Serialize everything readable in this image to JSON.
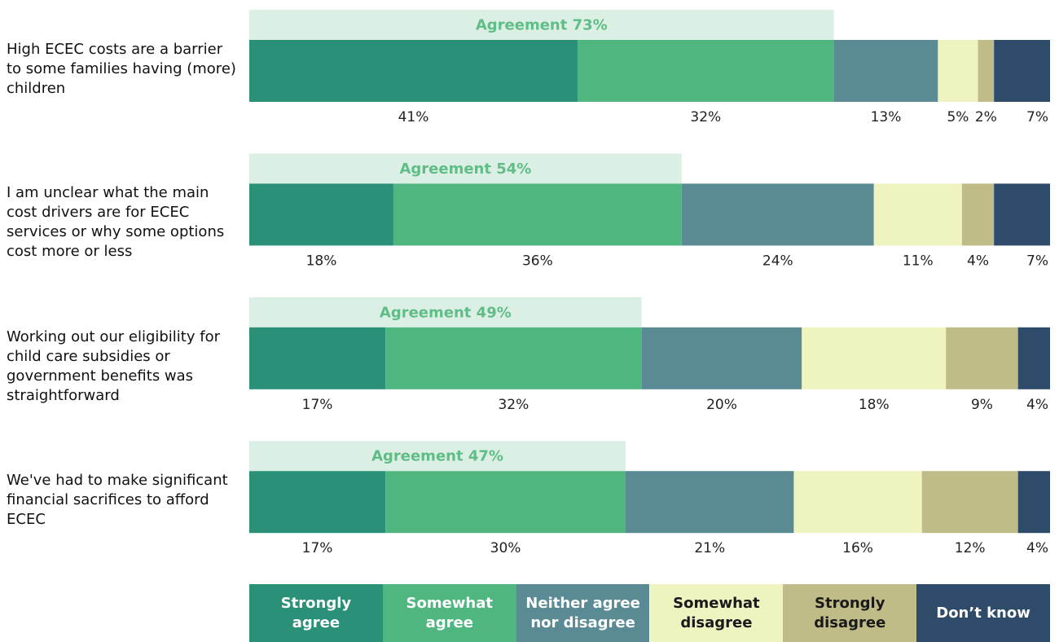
{
  "chart_data": {
    "type": "stacked_bar",
    "orientation": "horizontal",
    "categories": [
      "High ECEC costs are a barrier to some families having (more) children",
      "I am unclear what the main cost drivers are for ECEC services or why some options cost more or less",
      "Working out our eligibility for child care subsidies or government benefits was straightforward",
      "We've had to make significant financial sacrifices to afford ECEC"
    ],
    "xlim": [
      0,
      100
    ],
    "series": [
      {
        "name": "Strongly agree",
        "color": "#2a9078",
        "values": [
          41,
          18,
          17,
          17
        ],
        "value_labels": [
          "41%",
          "18%",
          "17%",
          "17%"
        ]
      },
      {
        "name": "Somewhat agree",
        "color": "#50b67f",
        "values": [
          32,
          36,
          32,
          30
        ],
        "value_labels": [
          "32%",
          "36%",
          "32%",
          "30%"
        ]
      },
      {
        "name": "Neither agree nor disagree",
        "color": "#5a8b95",
        "values": [
          13,
          24,
          20,
          21
        ],
        "value_labels": [
          "13%",
          "24%",
          "20%",
          "21%"
        ]
      },
      {
        "name": "Somewhat disagree",
        "color": "#eff3c0",
        "values": [
          5,
          11,
          18,
          16
        ],
        "value_labels": [
          "5%",
          "11%",
          "18%",
          "16%"
        ]
      },
      {
        "name": "Strongly disagree",
        "color": "#c0bc88",
        "values": [
          2,
          4,
          9,
          12
        ],
        "value_labels": [
          "2%",
          "4%",
          "9%",
          "12%"
        ]
      },
      {
        "name": "Don’t know",
        "color": "#2e4b6a",
        "values": [
          7,
          7,
          4,
          4
        ],
        "value_labels": [
          "7%",
          "7%",
          "4%",
          "4%"
        ]
      }
    ],
    "agreement": {
      "color": "#dcefe4",
      "text_color": "#5fbd87",
      "values": [
        73,
        54,
        49,
        47
      ],
      "value_labels": [
        "Agreement 73%",
        "Agreement 54%",
        "Agreement 49%",
        "Agreement 47%"
      ]
    },
    "legend": "bottom"
  }
}
